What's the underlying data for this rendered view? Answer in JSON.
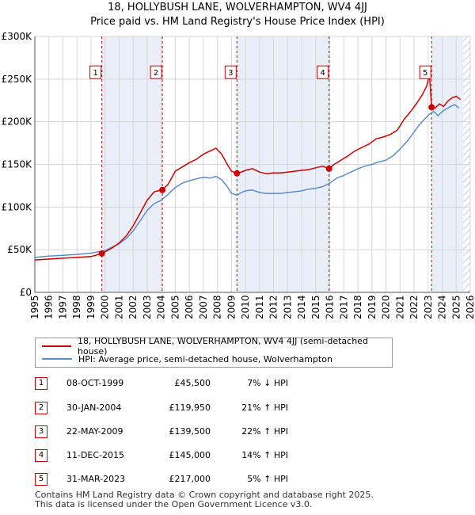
{
  "title_line1": "18, HOLLYBUSH LANE, WOLVERHAMPTON, WV4 4JJ",
  "title_line2": "Price paid vs. HM Land Registry's House Price Index (HPI)",
  "chart_data": {
    "type": "line",
    "title": "18, HOLLYBUSH LANE, WOLVERHAMPTON, WV4 4JJ — Price paid vs. HM Land Registry's House Price Index (HPI)",
    "xlabel": "",
    "ylabel": "",
    "xlim": [
      1995,
      2026
    ],
    "ylim": [
      0,
      300000
    ],
    "y_ticks": [
      0,
      50000,
      100000,
      150000,
      200000,
      250000,
      300000
    ],
    "y_tick_labels": [
      "£0",
      "£50K",
      "£100K",
      "£150K",
      "£200K",
      "£250K",
      "£300K"
    ],
    "x_ticks": [
      1995,
      1996,
      1997,
      1998,
      1999,
      2000,
      2001,
      2002,
      2003,
      2004,
      2005,
      2006,
      2007,
      2008,
      2009,
      2010,
      2011,
      2012,
      2013,
      2014,
      2015,
      2016,
      2017,
      2018,
      2019,
      2020,
      2021,
      2022,
      2023,
      2024,
      2025,
      2026
    ],
    "shaded_periods": [
      [
        1999.77,
        2004.08
      ],
      [
        2009.39,
        2015.95
      ],
      [
        2023.25,
        2025.5
      ]
    ],
    "hatched_period": [
      2025.5,
      2026
    ],
    "series": [
      {
        "name": "18, HOLLYBUSH LANE, WOLVERHAMPTON, WV4 4JJ (semi-detached house)",
        "color": "#cc0000",
        "x": [
          1995,
          1996,
          1997,
          1998,
          1999,
          1999.77,
          2000,
          2000.5,
          2001,
          2001.5,
          2002,
          2002.5,
          2003,
          2003.5,
          2004.0,
          2004.08,
          2004.5,
          2005,
          2005.5,
          2006,
          2006.5,
          2007,
          2007.5,
          2007.9,
          2008.3,
          2008.7,
          2009,
          2009.39,
          2009.7,
          2010,
          2010.5,
          2011,
          2011.5,
          2012,
          2012.5,
          2013,
          2013.5,
          2014,
          2014.5,
          2015,
          2015.5,
          2015.95,
          2016.3,
          2016.8,
          2017.3,
          2017.8,
          2018.3,
          2018.8,
          2019.3,
          2019.8,
          2020.3,
          2020.8,
          2021.3,
          2021.8,
          2022.2,
          2022.6,
          2022.9,
          2023.1,
          2023.25,
          2023.5,
          2023.8,
          2024.1,
          2024.4,
          2024.7,
          2025.0,
          2025.3
        ],
        "values": [
          38000,
          39000,
          40000,
          41000,
          42000,
          45500,
          47500,
          52000,
          58000,
          66000,
          78000,
          93000,
          108000,
          118000,
          119950,
          119950,
          127000,
          142000,
          147000,
          152000,
          156000,
          162000,
          166000,
          169000,
          162000,
          150000,
          142000,
          139500,
          141000,
          143000,
          145000,
          141000,
          139000,
          140000,
          140000,
          141000,
          142000,
          143000,
          144000,
          146000,
          148000,
          145000,
          150000,
          155000,
          160000,
          166000,
          170000,
          174000,
          180000,
          182000,
          185000,
          190000,
          203000,
          213000,
          222000,
          232000,
          242000,
          255000,
          217000,
          216000,
          221000,
          218000,
          224000,
          228000,
          230000,
          226000
        ]
      },
      {
        "name": "HPI: Average price, semi-detached house, Wolverhampton",
        "color": "#5b8dc9",
        "x": [
          1995,
          1996,
          1997,
          1998,
          1999,
          2000,
          2000.5,
          2001,
          2001.5,
          2002,
          2002.5,
          2003,
          2003.5,
          2004,
          2004.5,
          2005,
          2005.5,
          2006,
          2006.5,
          2007,
          2007.5,
          2007.9,
          2008.3,
          2008.7,
          2009,
          2009.4,
          2009.7,
          2010,
          2010.5,
          2011,
          2011.5,
          2012,
          2012.5,
          2013,
          2013.5,
          2014,
          2014.5,
          2015,
          2015.5,
          2016,
          2016.5,
          2017,
          2017.5,
          2018,
          2018.5,
          2019,
          2019.5,
          2020,
          2020.5,
          2021,
          2021.5,
          2022,
          2022.4,
          2022.8,
          2023.1,
          2023.4,
          2023.7,
          2024,
          2024.3,
          2024.6,
          2024.9,
          2025.2
        ],
        "values": [
          41000,
          42500,
          43500,
          44500,
          46000,
          49000,
          53000,
          57000,
          63000,
          72000,
          84000,
          96000,
          104000,
          108000,
          115000,
          123000,
          128000,
          131000,
          133000,
          135000,
          134000,
          136000,
          132000,
          124000,
          116000,
          114000,
          117000,
          119000,
          120000,
          117000,
          116000,
          116000,
          116000,
          117000,
          118000,
          119000,
          121000,
          122000,
          124000,
          128000,
          134000,
          137000,
          141000,
          145000,
          148000,
          150000,
          153000,
          155000,
          160000,
          168000,
          177000,
          188000,
          197000,
          204000,
          209000,
          212000,
          207000,
          212000,
          215000,
          218000,
          220000,
          216000
        ]
      }
    ],
    "markers": [
      {
        "label": "1",
        "x": 1999.77,
        "value": 45500
      },
      {
        "label": "2",
        "x": 2004.08,
        "value": 119950
      },
      {
        "label": "3",
        "x": 2009.39,
        "value": 139500
      },
      {
        "label": "4",
        "x": 2015.95,
        "value": 145000
      },
      {
        "label": "5",
        "x": 2023.25,
        "value": 217000
      }
    ],
    "marker_label_value": 258000,
    "legend_location": "below"
  },
  "legend": {
    "property_label": "18, HOLLYBUSH LANE, WOLVERHAMPTON, WV4 4JJ (semi-detached house)",
    "hpi_label": "HPI: Average price, semi-detached house, Wolverhampton"
  },
  "sales": [
    {
      "num": "1",
      "date": "08-OCT-1999",
      "price": "£45,500",
      "hpi": "7% ↓ HPI"
    },
    {
      "num": "2",
      "date": "30-JAN-2004",
      "price": "£119,950",
      "hpi": "21% ↑ HPI"
    },
    {
      "num": "3",
      "date": "22-MAY-2009",
      "price": "£139,500",
      "hpi": "22% ↑ HPI"
    },
    {
      "num": "4",
      "date": "11-DEC-2015",
      "price": "£145,000",
      "hpi": "14% ↑ HPI"
    },
    {
      "num": "5",
      "date": "31-MAR-2023",
      "price": "£217,000",
      "hpi": "5% ↑ HPI"
    }
  ],
  "footer_line1": "Contains HM Land Registry data © Crown copyright and database right 2025.",
  "footer_line2": "This data is licensed under the Open Government Licence v3.0."
}
